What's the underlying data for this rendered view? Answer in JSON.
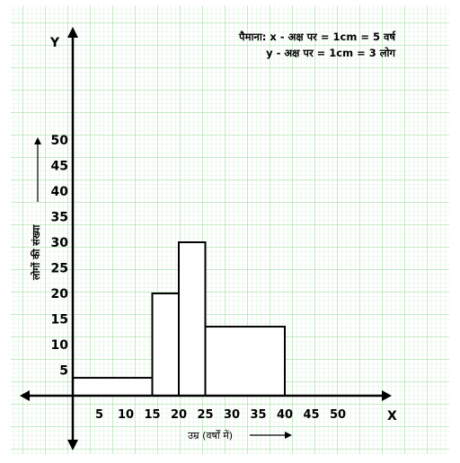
{
  "chart_data": {
    "type": "histogram",
    "bins": [
      {
        "start": 0,
        "end": 15,
        "value": 3.5
      },
      {
        "start": 15,
        "end": 20,
        "value": 20
      },
      {
        "start": 20,
        "end": 25,
        "value": 30
      },
      {
        "start": 25,
        "end": 40,
        "value": 13.5
      }
    ],
    "x_ticks": [
      5,
      10,
      15,
      20,
      25,
      30,
      35,
      40,
      45,
      50
    ],
    "y_ticks": [
      5,
      10,
      15,
      20,
      25,
      30,
      35,
      40,
      45,
      50
    ],
    "xlim": [
      0,
      50
    ],
    "ylim": [
      0,
      50
    ],
    "xlabel": "उम्र (वर्षों में)",
    "ylabel": "लोगों की संख्या",
    "x_axis_letter": "X",
    "y_axis_letter": "Y",
    "scale_line_1": "पैमाना: x - अक्ष पर = 1cm = 5 वर्ष",
    "scale_line_2": "y - अक्ष पर = 1cm = 3 लोग",
    "grid": true,
    "colors": {
      "grid_minor": "#c6ebc6",
      "grid_major": "#93d693",
      "ink": "#000000",
      "bar_fill": "#ffffff"
    }
  }
}
